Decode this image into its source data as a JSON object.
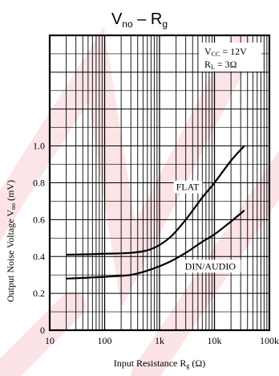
{
  "chart_data": {
    "type": "line",
    "title": {
      "main": "V",
      "sub1": "no",
      "mid": " – R",
      "sub2": "g"
    },
    "xlabel": {
      "main": "Input Resistance R",
      "sub": "g",
      "unit": " (Ω)"
    },
    "ylabel": {
      "main": "Output Noise Voltage V",
      "sub": "no",
      "unit": " (mV)"
    },
    "x_scale": "log",
    "xlim": [
      10,
      100000
    ],
    "ylim": [
      0,
      1.6
    ],
    "x_ticks": [
      {
        "value": 10,
        "label": "10"
      },
      {
        "value": 100,
        "label": "100"
      },
      {
        "value": 1000,
        "label": "1k"
      },
      {
        "value": 10000,
        "label": "10k"
      },
      {
        "value": 100000,
        "label": "100k"
      }
    ],
    "y_ticks": [
      {
        "value": 0,
        "label": "0"
      },
      {
        "value": 0.2,
        "label": "0.2"
      },
      {
        "value": 0.4,
        "label": "0.4"
      },
      {
        "value": 0.6,
        "label": "0.6"
      },
      {
        "value": 0.8,
        "label": "0.8"
      },
      {
        "value": 1.0,
        "label": "1.0"
      }
    ],
    "grid": true,
    "conditions": [
      {
        "main": "V",
        "sub": "CC",
        "value": " = 12V"
      },
      {
        "main": "R",
        "sub": "L",
        "value": " = 3Ω"
      }
    ],
    "series": [
      {
        "name": "FLAT",
        "x": [
          20,
          50,
          100,
          300,
          700,
          1500,
          3000,
          6000,
          10000,
          20000,
          35000
        ],
        "y": [
          0.41,
          0.412,
          0.415,
          0.42,
          0.44,
          0.5,
          0.6,
          0.72,
          0.8,
          0.92,
          1.0
        ]
      },
      {
        "name": "DIN/AUDIO",
        "x": [
          20,
          50,
          100,
          300,
          700,
          1500,
          3000,
          6000,
          10000,
          20000,
          35000
        ],
        "y": [
          0.28,
          0.285,
          0.29,
          0.3,
          0.33,
          0.37,
          0.42,
          0.48,
          0.52,
          0.59,
          0.65
        ]
      }
    ],
    "series_labels": [
      {
        "text": "FLAT",
        "anchor_x": 2000,
        "anchor_y": 0.76
      },
      {
        "text": "DIN/AUDIO",
        "anchor_x": 2900,
        "anchor_y": 0.33
      }
    ]
  },
  "colors": {
    "line": "#000000",
    "frame": "#000000",
    "grid": "#000000",
    "watermark": "#e8334a"
  }
}
